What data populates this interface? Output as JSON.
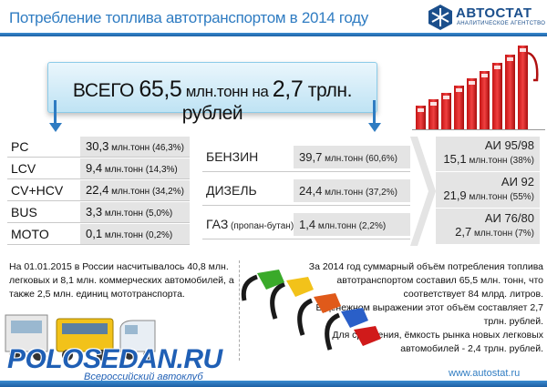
{
  "header": {
    "title": "Потребление топлива автотранспортом в 2014 году",
    "logo_name": "АВТОСТАТ",
    "logo_sub": "АНАЛИТИЧЕСКОЕ АГЕНТСТВО",
    "accent_color": "#2f7cc2"
  },
  "total": {
    "prefix": "ВСЕГО ",
    "amount": "65,5",
    "unit_mid": " млн.тонн на ",
    "money": "2,7",
    "unit_end": " трлн. рублей"
  },
  "vehicle_types": [
    {
      "label": "PC",
      "amount": "30,3",
      "unit": " млн.тонн (46,3%)"
    },
    {
      "label": "LCV",
      "amount": "9,4",
      "unit": " млн.тонн (14,3%)"
    },
    {
      "label": "CV+HCV",
      "amount": "22,4",
      "unit": " млн.тонн (34,2%)"
    },
    {
      "label": "BUS",
      "amount": "3,3",
      "unit": " млн.тонн (5,0%)"
    },
    {
      "label": "MOTO",
      "amount": "0,1",
      "unit": " млн.тонн (0,2%)"
    }
  ],
  "fuel_types": [
    {
      "label": "БЕНЗИН",
      "note": "",
      "amount": "39,7",
      "unit": " млн.тонн (60,6%)"
    },
    {
      "label": "ДИЗЕЛЬ",
      "note": "",
      "amount": "24,4",
      "unit": " млн.тонн (37,2%)"
    },
    {
      "label": "ГАЗ",
      "note": " (пропан-бутан)",
      "amount": "1,4",
      "unit": " млн.тонн (2,2%)"
    }
  ],
  "gasoline_grades": [
    {
      "grade": "АИ 95/98",
      "amount": "15,1",
      "unit": " млн.тонн (38%)"
    },
    {
      "grade": "АИ 92",
      "amount": "21,9",
      "unit": " млн.тонн (55%)"
    },
    {
      "grade": "АИ 76/80",
      "amount": "2,7",
      "unit": " млн.тонн (7%)"
    }
  ],
  "text_left": "На 01.01.2015 в России насчитывалось 40,8 млн. легковых и 8,1 млн. коммерческих автомобилей, а также 2,5 млн. единиц мототранспорта.",
  "text_right_1": "За 2014 год суммарный объём потребления топлива автотранспортом составил 65,5 млн. тонн, что соответствует 84 млрд. литров.",
  "text_right_2": "В денежном выражении этот объём составляет 2,7 трлн. рублей.",
  "text_right_3": "Для сравнения, ёмкость рынка новых легковых автомобилей - 2,4 трлн. рублей.",
  "watermark": {
    "name": "POLOSEDAN.RU",
    "sub": "Всероссийский автоклуб"
  },
  "footer": {
    "url": "www.autostat.ru"
  }
}
